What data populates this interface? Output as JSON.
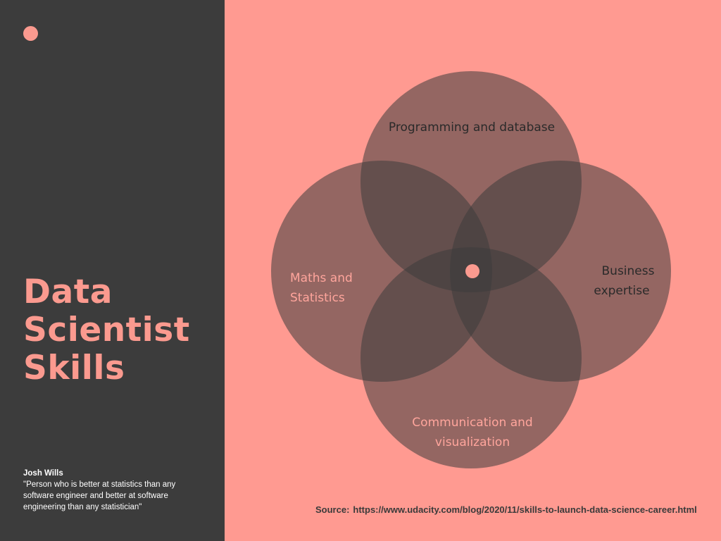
{
  "colors": {
    "sidebar_bg": "#3c3c3c",
    "main_bg": "#ff9a91",
    "accent": "#fb9a8f",
    "circle_fill": "#3c3c3c",
    "dark_text": "#2a2a2a",
    "light_text": "#ffa59c"
  },
  "title": {
    "line1": "Data",
    "line2": "Scientist",
    "line3": "Skills"
  },
  "quote": {
    "author": "Josh Wills",
    "text": "\"Person who is better at statistics than any software engineer and better at software engineering than any statistician\""
  },
  "venn": {
    "top": {
      "line1": "Programming and database"
    },
    "left": {
      "line1": "Maths and",
      "line2": "Statistics"
    },
    "right": {
      "line1": "Business",
      "line2": "expertise"
    },
    "bottom": {
      "line1": "Communication and",
      "line2": "visualization"
    }
  },
  "source": {
    "label": "Source:",
    "url": "https://www.udacity.com/blog/2020/11/skills-to-launch-data-science-career.html"
  }
}
